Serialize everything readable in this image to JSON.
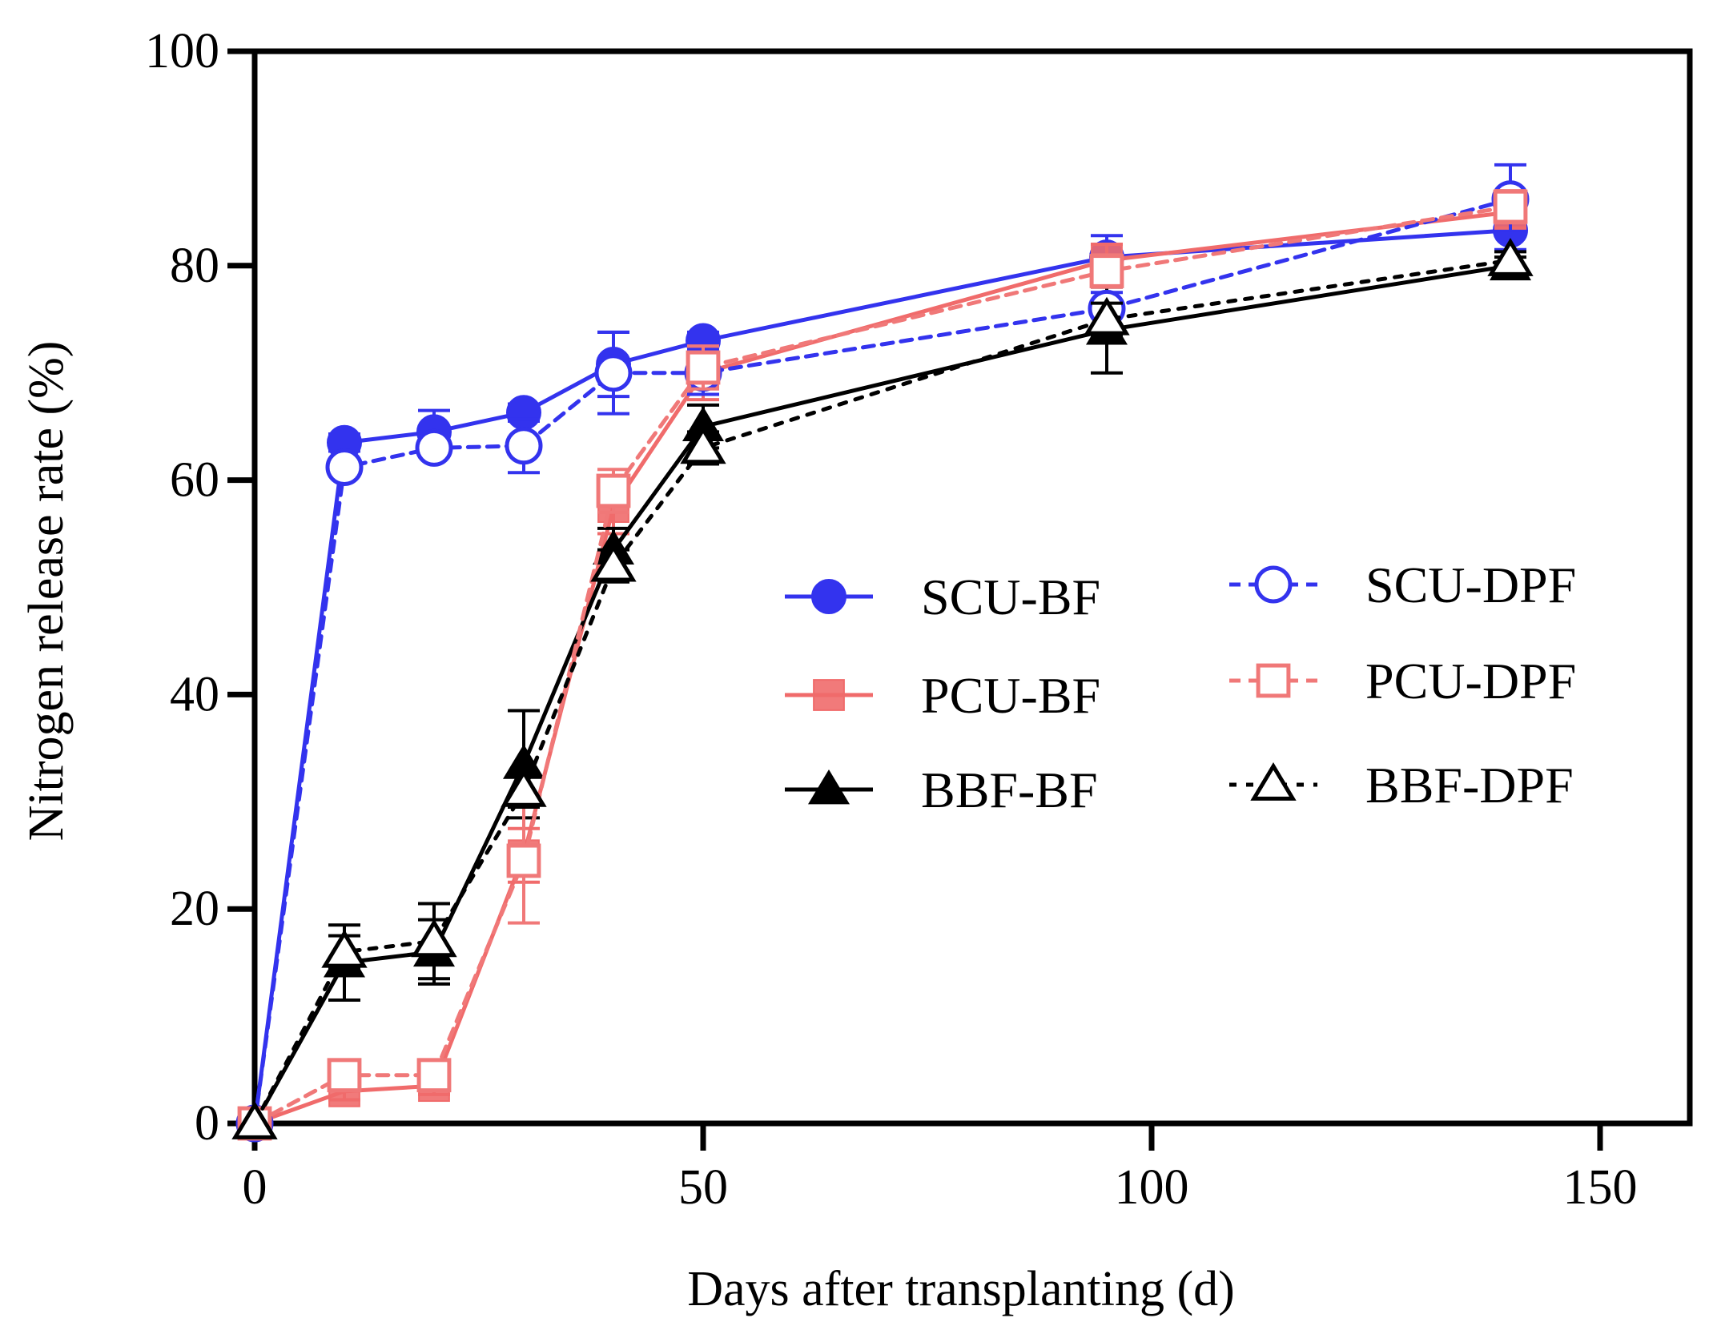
{
  "chart_data": {
    "type": "line",
    "xlabel": "Days after transplanting (d)",
    "ylabel": "Nitrogen release rate (%)",
    "xlim": [
      0,
      160
    ],
    "ylim": [
      0,
      100
    ],
    "xticks": [
      0,
      50,
      100,
      150
    ],
    "yticks": [
      0,
      20,
      40,
      60,
      80,
      100
    ],
    "xtick_labels": [
      "0",
      "50",
      "100",
      "150"
    ],
    "ytick_labels": [
      "0",
      "20",
      "40",
      "60",
      "80",
      "100"
    ],
    "x": [
      0,
      10,
      20,
      30,
      40,
      50,
      95,
      140
    ],
    "legend_position": "center-right",
    "series": [
      {
        "name": "SCU-BF",
        "legend_label": "SCU-BF",
        "color": "#3333ee",
        "marker": "circle",
        "filled": true,
        "dash": "solid",
        "values": [
          0,
          63.5,
          64.5,
          66.3,
          70.8,
          73.0,
          80.8,
          83.3
        ],
        "errors": [
          0,
          0.8,
          2.0,
          0.8,
          3.0,
          0.8,
          2.0,
          1.8
        ]
      },
      {
        "name": "PCU-BF",
        "legend_label": "PCU-BF",
        "color": "#f06b6b",
        "marker": "square",
        "filled": true,
        "dash": "solid",
        "values": [
          0,
          3.0,
          3.5,
          25.0,
          57.5,
          70.0,
          80.5,
          85.0
        ],
        "errors": [
          0,
          0.8,
          0.8,
          2.5,
          2.5,
          2.5,
          1.5,
          1.5
        ]
      },
      {
        "name": "BBF-BF",
        "legend_label": "BBF-BF",
        "color": "#000000",
        "marker": "triangle",
        "filled": true,
        "dash": "solid",
        "values": [
          0,
          15.0,
          16.0,
          33.5,
          53.5,
          65.0,
          74.0,
          80.0
        ],
        "errors": [
          0,
          3.5,
          3.0,
          5.0,
          2.0,
          2.0,
          4.0,
          0.8
        ]
      },
      {
        "name": "SCU-DPF",
        "legend_label": "SCU-DPF",
        "color": "#3333ee",
        "marker": "circle",
        "filled": false,
        "dash": "dashed",
        "values": [
          0,
          61.2,
          63.0,
          63.2,
          70.0,
          70.0,
          76.0,
          86.2
        ],
        "errors": [
          0,
          0.8,
          0.8,
          2.5,
          3.8,
          2.0,
          1.5,
          3.2
        ]
      },
      {
        "name": "PCU-DPF",
        "legend_label": "PCU-DPF",
        "color": "#f07878",
        "marker": "square",
        "filled": false,
        "dash": "dashed",
        "values": [
          0,
          4.5,
          4.5,
          24.5,
          59.0,
          70.5,
          79.5,
          85.5
        ],
        "errors": [
          0,
          0.8,
          0.8,
          5.8,
          2.0,
          2.0,
          1.5,
          1.5
        ]
      },
      {
        "name": "BBF-DPF",
        "legend_label": "BBF-DPF",
        "color": "#000000",
        "marker": "triangle",
        "filled": false,
        "dash": "dotted",
        "values": [
          0,
          16.0,
          17.0,
          31.0,
          52.0,
          63.0,
          75.0,
          80.5
        ],
        "errors": [
          0,
          1.5,
          3.5,
          1.5,
          1.5,
          1.5,
          1.5,
          0.8
        ]
      }
    ]
  }
}
